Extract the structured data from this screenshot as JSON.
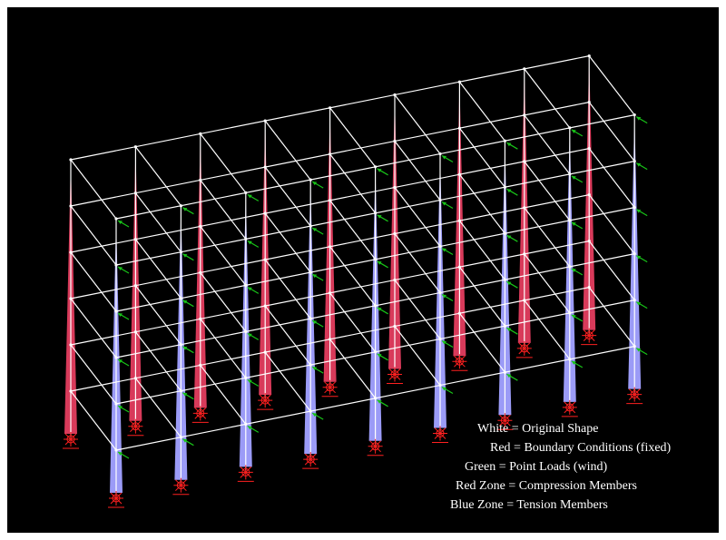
{
  "legend": {
    "items": [
      {
        "id": "white",
        "text": "White = Original Shape"
      },
      {
        "id": "red",
        "text": "Red = Boundary Conditions (fixed)"
      },
      {
        "id": "green",
        "text": "Green = Point Loads (wind)"
      },
      {
        "id": "redzone",
        "text": "Red Zone = Compression Members"
      },
      {
        "id": "bluezone",
        "text": "Blue Zone = Tension Members"
      }
    ]
  },
  "colors": {
    "background": "#000000",
    "frame": "#ffffff",
    "compression": "#d83a5a",
    "tension": "#9b9bf7",
    "load": "#18c418",
    "support": "#ff2020"
  },
  "structure": {
    "stories": 6,
    "bays_front": 8,
    "bays_side": 1
  }
}
